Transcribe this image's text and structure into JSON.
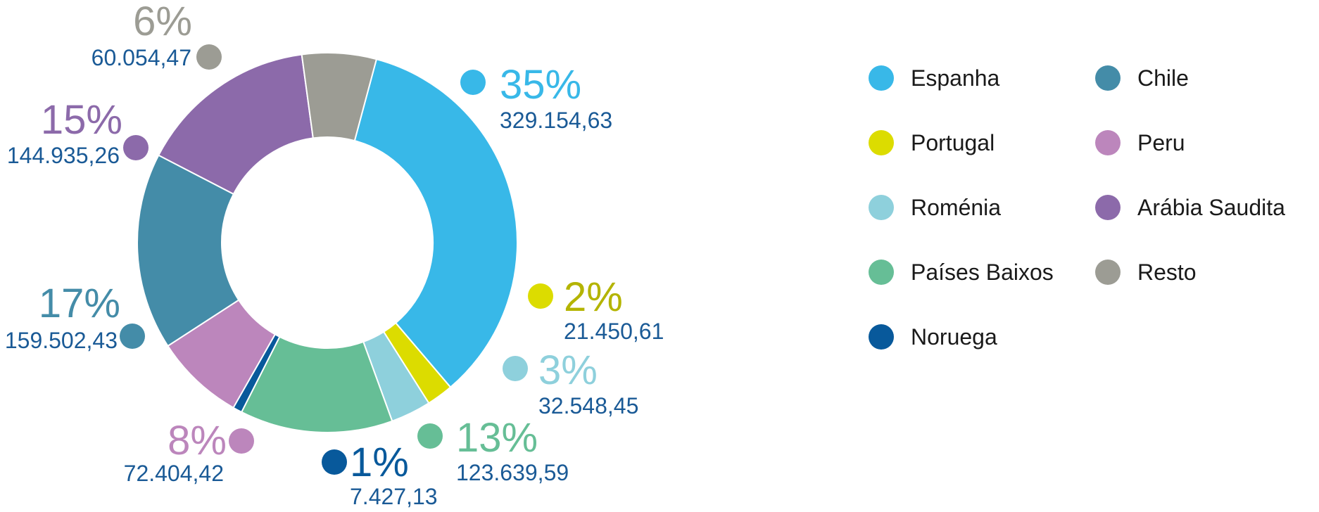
{
  "chart_data": {
    "type": "donut",
    "categories": [
      "Espanha",
      "Portugal",
      "Roménia",
      "Países Baixos",
      "Noruega",
      "Peru",
      "Chile",
      "Arábia Saudita",
      "Resto"
    ],
    "values": [
      329154.63,
      21450.61,
      32548.45,
      123639.59,
      7427.13,
      72404.42,
      159502.43,
      144935.26,
      60054.47
    ],
    "value_labels": [
      "329.154,63",
      "21.450,61",
      "32.548,45",
      "123.639,59",
      "7.427,13",
      "72.404,42",
      "159.502,43",
      "144.935,26",
      "60.054,47"
    ],
    "percent_labels": [
      "35%",
      "2%",
      "3%",
      "13%",
      "1%",
      "8%",
      "17%",
      "15%",
      "6%"
    ],
    "colors": [
      "#38b8e8",
      "#dcdc00",
      "#8ed0dc",
      "#66be96",
      "#08599b",
      "#bc86bc",
      "#448ca8",
      "#8c6aaa",
      "#9c9c94"
    ],
    "percent_label_colors": [
      "#38b8e8",
      "#b4b400",
      "#8ed0dc",
      "#66be96",
      "#08599b",
      "#bc86bc",
      "#448ca8",
      "#8c6aaa",
      "#9c9c94"
    ],
    "legend": {
      "placement": "right",
      "columns": [
        [
          "Espanha",
          "Portugal",
          "Roménia",
          "Países Baixos",
          "Noruega"
        ],
        [
          "Chile",
          "Peru",
          "Arábia Saudita",
          "Resto"
        ]
      ]
    }
  }
}
